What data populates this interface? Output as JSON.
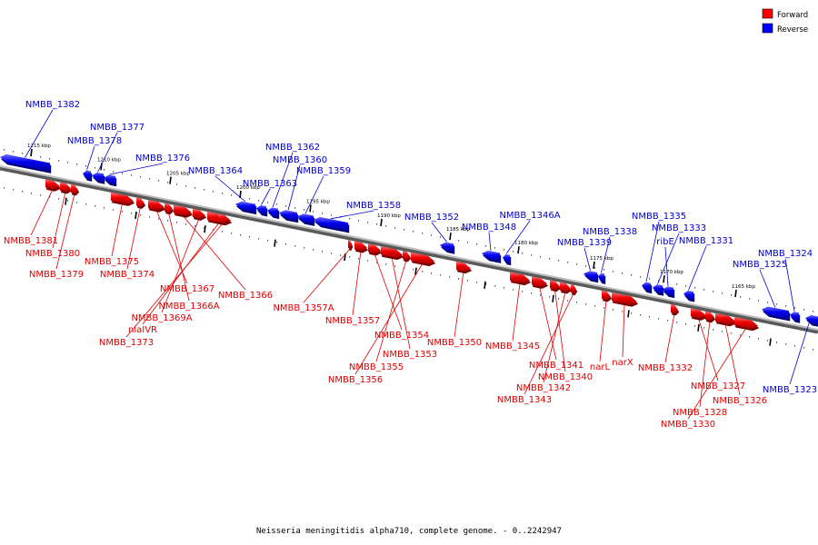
{
  "legend": {
    "forward_label": "Forward",
    "reverse_label": "Reverse",
    "forward_color": "#ff0000",
    "reverse_color": "#0000ff"
  },
  "caption": "Neisseria meningitidis alpha710, complete genome. - 0..2242947",
  "axis_color": "#888888",
  "kbp_ticks": [
    {
      "label": "1215 kbp"
    },
    {
      "label": "1210 kbp"
    },
    {
      "label": "1205 kbp"
    },
    {
      "label": "1200 kbp"
    },
    {
      "label": "1195 kbp"
    },
    {
      "label": "1190 kbp"
    },
    {
      "label": "1185 kbp"
    },
    {
      "label": "1180 kbp"
    },
    {
      "label": "1175 kbp"
    },
    {
      "label": "1170 kbp"
    },
    {
      "label": "1165 kbp"
    }
  ],
  "reverse_genes": [
    "NMBB_1382",
    "NMBB_1378",
    "NMBB_1377",
    "NMBB_1376",
    "NMBB_1364",
    "NMBB_1363",
    "NMBB_1362",
    "NMBB_1360",
    "NMBB_1359",
    "NMBB_1358",
    "NMBB_1352",
    "NMBB_1348",
    "NMBB_1346A",
    "NMBB_1339",
    "NMBB_1338",
    "NMBB_1335",
    "NMBB_1333",
    "ribE",
    "NMBB_1331",
    "NMBB_1325",
    "NMBB_1324",
    "NMBB_1323"
  ],
  "forward_genes": [
    "NMBB_1381",
    "NMBB_1380",
    "NMBB_1379",
    "NMBB_1375",
    "NMBB_1374",
    "NMBB_1367",
    "NMBB_1366A",
    "NMBB_1366",
    "NMBB_1369A",
    "nlaIVR",
    "NMBB_1373",
    "NMBB_1357A",
    "NMBB_1357",
    "NMBB_1354",
    "NMBB_1353",
    "NMBB_1355",
    "NMBB_1356",
    "NMBB_1350",
    "NMBB_1345",
    "NMBB_1341",
    "NMBB_1340",
    "NMBB_1342",
    "NMBB_1343",
    "narL",
    "narX",
    "NMBB_1332",
    "NMBB_1327",
    "NMBB_1326",
    "NMBB_1328",
    "NMBB_1330"
  ]
}
